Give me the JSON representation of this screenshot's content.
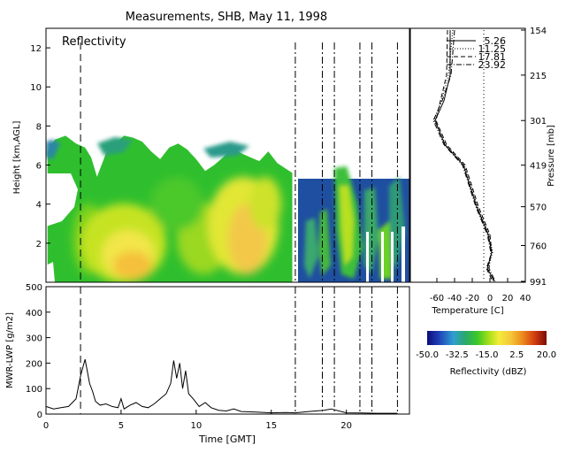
{
  "title": "Measurements, SHB, May 11, 1998",
  "colors": {
    "radar_ramp": [
      "#1a1aa0",
      "#1f4fb8",
      "#2a7fb0",
      "#2aa05a",
      "#2fc02a",
      "#7fd41a",
      "#d8ea20",
      "#f3e84a",
      "#f5c63a",
      "#ec8a1a",
      "#d23c10",
      "#8a1008"
    ],
    "lwp_line": "#000000",
    "axes": "#000000"
  },
  "chart_data": [
    {
      "type": "heatmap",
      "label": "Reflectivity",
      "xlim": [
        0,
        24.2
      ],
      "ylim": [
        0,
        13
      ],
      "x_ticks": [
        0,
        5,
        10,
        15,
        20
      ],
      "y_ticks": [
        2,
        4,
        6,
        8,
        10,
        12
      ],
      "ylabel": "Height [km,AGL]",
      "vlines_dash": [
        2.3
      ],
      "vlines_dashdot": [
        16.6,
        18.4,
        19.2,
        20.9,
        21.7,
        23.4
      ],
      "cloud_top": {
        "x": [
          0.1,
          0.6,
          1.3,
          2.0,
          2.6,
          3.0,
          3.4,
          4.0,
          4.6,
          5.2,
          5.8,
          6.4,
          7.0,
          7.6,
          8.2,
          8.8,
          9.4,
          10.0,
          10.6,
          11.2,
          11.8,
          12.4,
          13.0,
          13.6,
          14.2,
          14.8,
          15.4,
          16.0,
          16.4
        ],
        "top": [
          6.7,
          7.3,
          7.5,
          7.1,
          6.9,
          6.4,
          5.4,
          6.6,
          7.1,
          7.5,
          7.4,
          7.2,
          6.7,
          6.3,
          6.9,
          7.1,
          6.8,
          6.3,
          5.7,
          6.0,
          6.4,
          6.9,
          6.6,
          6.4,
          6.2,
          6.7,
          6.1,
          5.8,
          5.6
        ]
      },
      "colorbar": {
        "ticks": [
          "-50.0",
          "-32.5",
          "-15.0",
          "2.5",
          "20.0"
        ],
        "label": "Reflectivity (dBZ)"
      }
    },
    {
      "type": "line",
      "xlabel": "Time [GMT]",
      "ylabel": "MWR-LWP [g/m2]",
      "xlim": [
        0,
        24.2
      ],
      "ylim": [
        0,
        500
      ],
      "x_ticks": [
        0,
        5,
        10,
        15,
        20
      ],
      "y_ticks": [
        0,
        100,
        200,
        300,
        400,
        500
      ],
      "vlines_dash": [
        2.3
      ],
      "vlines_dashdot": [
        16.6,
        18.4,
        19.2,
        20.9,
        21.7,
        23.4
      ],
      "x": [
        0,
        0.5,
        1.0,
        1.5,
        2.0,
        2.3,
        2.6,
        2.9,
        3.1,
        3.3,
        3.6,
        4.0,
        4.4,
        4.8,
        5.0,
        5.2,
        5.6,
        6.0,
        6.4,
        6.8,
        7.2,
        7.6,
        8.0,
        8.3,
        8.5,
        8.7,
        8.9,
        9.1,
        9.3,
        9.5,
        9.8,
        10.2,
        10.6,
        11.0,
        11.5,
        12.0,
        12.5,
        13.0,
        14.0,
        15.0,
        16.0,
        16.6,
        17.5,
        18.5,
        19.0,
        20.0,
        21.0,
        22.0,
        23.0,
        23.4
      ],
      "values": [
        30,
        20,
        25,
        30,
        60,
        150,
        215,
        120,
        90,
        50,
        35,
        40,
        30,
        25,
        60,
        20,
        35,
        45,
        30,
        25,
        40,
        60,
        80,
        120,
        210,
        140,
        200,
        100,
        170,
        80,
        60,
        30,
        45,
        25,
        15,
        12,
        20,
        10,
        8,
        5,
        6,
        5,
        10,
        15,
        20,
        5,
        4,
        3,
        3,
        3
      ]
    },
    {
      "type": "line",
      "xlabel": "Temperature [C]",
      "ylabel": "Pressure [mb]",
      "xlim": [
        -90,
        40
      ],
      "x_ticks": [
        "-60",
        "-40",
        "-20",
        "0",
        "20",
        "40"
      ],
      "pressure_ticks": [
        "154",
        "215",
        "301",
        "419",
        "570",
        "760",
        "991"
      ],
      "series": [
        {
          "name": "5.26",
          "style": "solid",
          "temps": [
            -45,
            -45,
            -52,
            -62,
            -51,
            -30,
            -15,
            -2,
            2,
            -3,
            5
          ],
          "pressure": [
            154,
            215,
            260,
            301,
            360,
            419,
            570,
            700,
            800,
            900,
            991
          ]
        },
        {
          "name": "11.25",
          "style": "dotted",
          "temps": [
            -42,
            -47,
            -55,
            -63,
            -50,
            -29,
            -14,
            -1,
            3,
            -2,
            4
          ],
          "pressure": [
            154,
            215,
            260,
            301,
            360,
            419,
            570,
            700,
            800,
            900,
            991
          ]
        },
        {
          "name": "17.81",
          "style": "dashed",
          "temps": [
            -48,
            -49,
            -56,
            -61,
            -49,
            -28,
            -13,
            0,
            2,
            -4,
            3
          ],
          "pressure": [
            154,
            215,
            260,
            301,
            360,
            419,
            570,
            700,
            800,
            900,
            991
          ]
        },
        {
          "name": "23.92",
          "style": "dashdot",
          "temps": [
            -40,
            -44,
            -54,
            -64,
            -52,
            -31,
            -16,
            -3,
            1,
            -1,
            6
          ],
          "pressure": [
            154,
            215,
            260,
            301,
            360,
            419,
            570,
            700,
            800,
            900,
            991
          ]
        }
      ],
      "zero_line": 0
    }
  ]
}
